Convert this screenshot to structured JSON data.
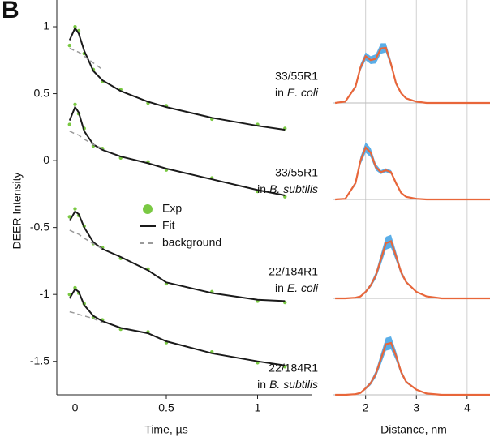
{
  "panel_label": "B",
  "chart_data": [
    {
      "type": "line",
      "xlabel": "Time, µs",
      "ylabel": "DEER Intensity",
      "x": [
        -0.03,
        0,
        0.02,
        0.05,
        0.1,
        0.15,
        0.25,
        0.4,
        0.5,
        0.75,
        1.0,
        1.15
      ],
      "xlim": [
        -0.1,
        1.3
      ],
      "ylim": [
        -1.75,
        1.2
      ],
      "xticks": [
        0,
        0.5,
        1
      ],
      "yticks": [
        1,
        0.5,
        0,
        -0.5,
        -1,
        -1.5
      ],
      "series": [
        {
          "name": "Exp",
          "style": "points",
          "color": "#7ac943",
          "values": [
            0.86,
            1.0,
            0.97,
            0.8,
            0.68,
            0.59,
            0.53,
            0.43,
            0.41,
            0.31,
            0.27,
            0.24
          ]
        },
        {
          "name": "Fit",
          "style": "solid",
          "color": "#1a1a1a",
          "values": [
            0.9,
            0.99,
            0.95,
            0.82,
            0.67,
            0.6,
            0.52,
            0.44,
            0.4,
            0.32,
            0.26,
            0.23
          ]
        },
        {
          "name": "background",
          "style": "dashed",
          "color": "#9a9a9a",
          "values": [
            0.84,
            0.82,
            0.81,
            0.78,
            0.73,
            0.68,
            null,
            null,
            null,
            null,
            null,
            null
          ]
        },
        {
          "style": "points",
          "color": "#7ac943",
          "values": [
            0.27,
            0.42,
            0.35,
            0.24,
            0.11,
            0.09,
            0.02,
            -0.01,
            -0.07,
            -0.13,
            -0.23,
            -0.27
          ]
        },
        {
          "style": "solid",
          "color": "#1a1a1a",
          "values": [
            0.3,
            0.4,
            0.36,
            0.22,
            0.12,
            0.08,
            0.03,
            -0.02,
            -0.06,
            -0.14,
            -0.22,
            -0.26
          ]
        },
        {
          "style": "dashed",
          "color": "#9a9a9a",
          "values": [
            0.22,
            0.2,
            0.19,
            0.16,
            0.12,
            0.09,
            null,
            null,
            null,
            null,
            null,
            null
          ]
        },
        {
          "style": "points",
          "color": "#7ac943",
          "values": [
            -0.42,
            -0.36,
            -0.41,
            -0.49,
            -0.62,
            -0.65,
            -0.73,
            -0.81,
            -0.92,
            -0.98,
            -1.05,
            -1.06
          ]
        },
        {
          "style": "solid",
          "color": "#1a1a1a",
          "values": [
            -0.45,
            -0.38,
            -0.4,
            -0.5,
            -0.61,
            -0.66,
            -0.72,
            -0.82,
            -0.91,
            -0.99,
            -1.04,
            -1.05
          ]
        },
        {
          "style": "dashed",
          "color": "#9a9a9a",
          "values": [
            -0.52,
            -0.54,
            -0.55,
            -0.58,
            -0.62,
            -0.66,
            null,
            null,
            null,
            null,
            null,
            null
          ]
        },
        {
          "style": "points",
          "color": "#7ac943",
          "values": [
            -1.0,
            -0.95,
            -0.99,
            -1.07,
            -1.17,
            -1.19,
            -1.26,
            -1.28,
            -1.36,
            -1.43,
            -1.51,
            -1.54
          ]
        },
        {
          "style": "solid",
          "color": "#1a1a1a",
          "values": [
            -1.03,
            -0.96,
            -0.98,
            -1.08,
            -1.16,
            -1.2,
            -1.25,
            -1.29,
            -1.35,
            -1.44,
            -1.5,
            -1.53
          ]
        },
        {
          "style": "dashed",
          "color": "#9a9a9a",
          "values": [
            -1.13,
            -1.14,
            -1.15,
            -1.16,
            -1.18,
            -1.21,
            null,
            null,
            null,
            null,
            null,
            null
          ]
        }
      ]
    },
    {
      "type": "area",
      "xlabel": "Distance, nm",
      "x": [
        1.4,
        1.6,
        1.8,
        1.9,
        2.0,
        2.1,
        2.2,
        2.3,
        2.4,
        2.5,
        2.6,
        2.7,
        2.8,
        3.0,
        3.2,
        3.5,
        4.0,
        4.45
      ],
      "xlim": [
        1.35,
        4.45
      ],
      "ylim": [
        0,
        1.4
      ],
      "xticks": [
        2,
        3,
        4
      ],
      "grid": true,
      "band_color": "#5aaee8",
      "line_color": "#e8663a",
      "panels": [
        {
          "label": {
            "strain": "33/55R1",
            "prefix": "in",
            "host": "E. coli"
          },
          "values": [
            0,
            0.02,
            0.25,
            0.55,
            0.72,
            0.66,
            0.68,
            0.84,
            0.85,
            0.6,
            0.3,
            0.15,
            0.07,
            0.02,
            0,
            0,
            0,
            0
          ],
          "error": [
            0,
            0,
            0.03,
            0.05,
            0.06,
            0.06,
            0.07,
            0.08,
            0.07,
            0.05,
            0.03,
            0.02,
            0,
            0,
            0,
            0,
            0,
            0
          ]
        },
        {
          "label": {
            "strain": "33/55R1",
            "prefix": "in",
            "host": "B. subtilis"
          },
          "values": [
            0,
            0.01,
            0.25,
            0.6,
            0.8,
            0.72,
            0.5,
            0.42,
            0.45,
            0.42,
            0.25,
            0.1,
            0.04,
            0.01,
            0,
            0,
            0,
            0
          ],
          "error": [
            0,
            0,
            0.03,
            0.06,
            0.08,
            0.07,
            0.05,
            0.03,
            0.03,
            0.03,
            0.02,
            0.01,
            0,
            0,
            0,
            0,
            0,
            0
          ]
        },
        {
          "label": {
            "strain": "22/184R1",
            "prefix": "in",
            "host": "E. coli"
          },
          "values": [
            0,
            0,
            0.01,
            0.03,
            0.1,
            0.2,
            0.35,
            0.6,
            0.85,
            0.88,
            0.65,
            0.4,
            0.25,
            0.1,
            0.03,
            0,
            0,
            0
          ],
          "error": [
            0,
            0,
            0,
            0.01,
            0.02,
            0.03,
            0.05,
            0.08,
            0.1,
            0.1,
            0.07,
            0.04,
            0.02,
            0.01,
            0,
            0,
            0,
            0
          ]
        },
        {
          "label": {
            "strain": "22/184R1",
            "prefix": "in",
            "host": "B. subtilis"
          },
          "values": [
            0,
            0,
            0.01,
            0.03,
            0.1,
            0.18,
            0.32,
            0.55,
            0.78,
            0.8,
            0.6,
            0.35,
            0.2,
            0.08,
            0.02,
            0,
            0,
            0
          ],
          "error": [
            0,
            0,
            0,
            0.01,
            0.02,
            0.03,
            0.05,
            0.08,
            0.1,
            0.1,
            0.07,
            0.04,
            0.02,
            0.01,
            0,
            0,
            0,
            0
          ]
        }
      ]
    }
  ]
}
